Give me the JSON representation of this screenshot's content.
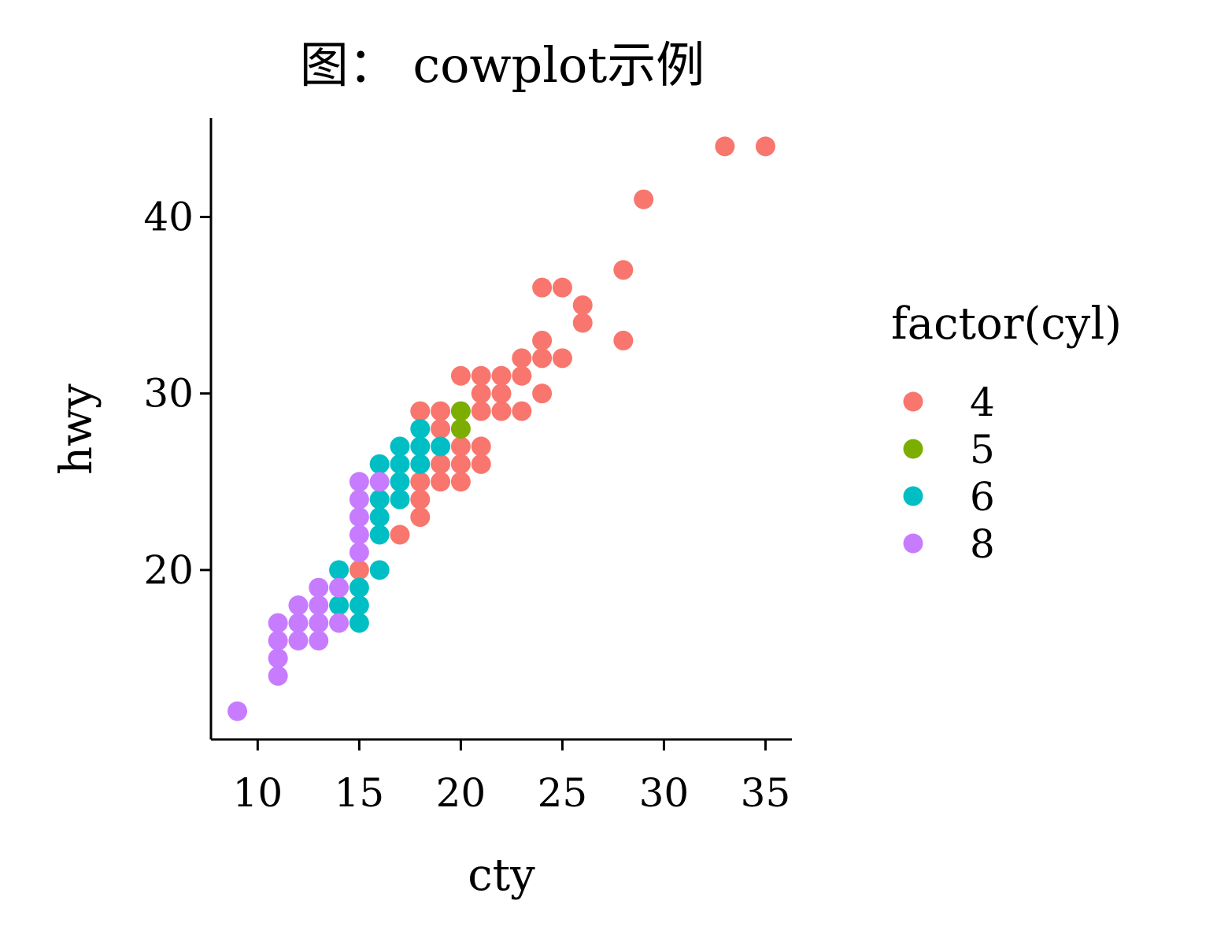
{
  "chart_data": {
    "type": "scatter",
    "title": "图： cowplot示例",
    "xlabel": "cty",
    "ylabel": "hwy",
    "xlim": [
      7.7,
      36.3
    ],
    "ylim": [
      10.4,
      45.6
    ],
    "x_ticks": [
      10,
      15,
      20,
      25,
      30,
      35
    ],
    "y_ticks": [
      20,
      30,
      40
    ],
    "grid": false,
    "legend": {
      "title": "factor(cyl)",
      "position": "right"
    },
    "series": [
      {
        "name": "4",
        "color": "#F8766D",
        "points": [
          [
            33,
            44
          ],
          [
            35,
            44
          ],
          [
            29,
            41
          ],
          [
            28,
            37
          ],
          [
            24,
            36
          ],
          [
            25,
            36
          ],
          [
            26,
            35
          ],
          [
            26,
            34
          ],
          [
            24,
            33
          ],
          [
            28,
            33
          ],
          [
            23,
            32
          ],
          [
            24,
            32
          ],
          [
            25,
            32
          ],
          [
            20,
            31
          ],
          [
            21,
            31
          ],
          [
            22,
            31
          ],
          [
            23,
            31
          ],
          [
            21,
            30
          ],
          [
            22,
            30
          ],
          [
            24,
            30
          ],
          [
            18,
            29
          ],
          [
            19,
            29
          ],
          [
            21,
            29
          ],
          [
            22,
            29
          ],
          [
            23,
            29
          ],
          [
            19,
            28
          ],
          [
            20,
            27
          ],
          [
            21,
            27
          ],
          [
            19,
            26
          ],
          [
            20,
            26
          ],
          [
            21,
            26
          ],
          [
            18,
            25
          ],
          [
            19,
            25
          ],
          [
            20,
            25
          ],
          [
            18,
            24
          ],
          [
            18,
            23
          ],
          [
            17,
            22
          ],
          [
            15,
            20
          ]
        ]
      },
      {
        "name": "5",
        "color": "#7CAE00",
        "points": [
          [
            20,
            29
          ],
          [
            20,
            28
          ]
        ]
      },
      {
        "name": "6",
        "color": "#00BFC4",
        "points": [
          [
            18,
            28
          ],
          [
            17,
            27
          ],
          [
            18,
            27
          ],
          [
            19,
            27
          ],
          [
            16,
            26
          ],
          [
            17,
            26
          ],
          [
            18,
            26
          ],
          [
            17,
            25
          ],
          [
            16,
            24
          ],
          [
            17,
            24
          ],
          [
            16,
            23
          ],
          [
            16,
            22
          ],
          [
            14,
            20
          ],
          [
            16,
            20
          ],
          [
            15,
            19
          ],
          [
            14,
            18
          ],
          [
            15,
            18
          ],
          [
            15,
            17
          ]
        ]
      },
      {
        "name": "8",
        "color": "#C77CFF",
        "points": [
          [
            15,
            25
          ],
          [
            16,
            25
          ],
          [
            15,
            24
          ],
          [
            15,
            23
          ],
          [
            15,
            22
          ],
          [
            15,
            21
          ],
          [
            13,
            19
          ],
          [
            14,
            19
          ],
          [
            12,
            18
          ],
          [
            13,
            18
          ],
          [
            11,
            17
          ],
          [
            12,
            17
          ],
          [
            13,
            17
          ],
          [
            14,
            17
          ],
          [
            11,
            16
          ],
          [
            12,
            16
          ],
          [
            13,
            16
          ],
          [
            11,
            15
          ],
          [
            11,
            14
          ],
          [
            9,
            12
          ]
        ]
      }
    ]
  }
}
